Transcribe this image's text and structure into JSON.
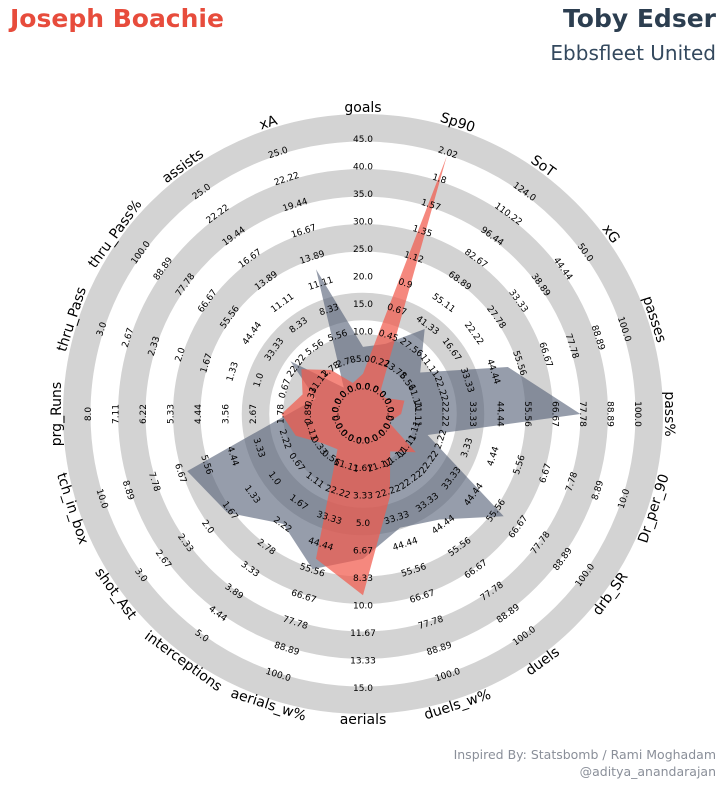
{
  "header": {
    "player1": "Joseph Boachie",
    "player2": "Toby Edser",
    "team2": "Ebbsfleet United"
  },
  "credits": {
    "line1": "Inspired By: Statsbomb / Rami Moghadam",
    "line2": "@aditya_anandarajan"
  },
  "colors": {
    "player1": "#f15a4c",
    "player2": "#566178",
    "ring": "#d3d3d3"
  },
  "chart_data": {
    "type": "radar",
    "params": [
      "goals",
      "Sp90",
      "SoT",
      "xG",
      "passes",
      "pass%",
      "Dr_per_90",
      "drb_SR",
      "duels",
      "duels_w%",
      "aerials",
      "aerials_w%",
      "interceptions",
      "shot_Ast",
      "tch_in_box",
      "prg_Runs",
      "thru_Pass",
      "thru_Pass%",
      "assists",
      "xA"
    ],
    "ranges": [
      [
        0,
        45
      ],
      [
        0,
        2.25
      ],
      [
        0,
        138
      ],
      [
        0,
        55.56
      ],
      [
        0,
        111.11
      ],
      [
        0,
        111.11
      ],
      [
        0,
        11.11
      ],
      [
        0,
        111.11
      ],
      [
        0,
        111.11
      ],
      [
        0,
        111.11
      ],
      [
        0,
        16.67
      ],
      [
        0,
        111.11
      ],
      [
        0,
        5.56
      ],
      [
        0,
        3.33
      ],
      [
        0,
        11.11
      ],
      [
        0,
        8.89
      ],
      [
        0,
        3.33
      ],
      [
        0,
        111.11
      ],
      [
        0,
        27.78
      ],
      [
        0,
        27.78
      ]
    ],
    "tick_labels": [
      [
        "0.0",
        "5.0",
        "10.0",
        "15.0",
        "20.0",
        "25.0",
        "30.0",
        "35.0",
        "40.0",
        "45.0"
      ],
      [
        "0.0",
        "0.22",
        "0.45",
        "0.67",
        "0.9",
        "1.12",
        "1.35",
        "1.57",
        "1.8",
        "2.02"
      ],
      [
        "0.0",
        "13.78",
        "27.56",
        "41.33",
        "55.11",
        "68.89",
        "82.67",
        "96.44",
        "110.22",
        "124.0"
      ],
      [
        "0.0",
        "5.56",
        "11.11",
        "16.67",
        "22.22",
        "27.78",
        "33.33",
        "38.89",
        "44.44",
        "50.0"
      ],
      [
        "0.0",
        "11.11",
        "22.22",
        "33.33",
        "44.44",
        "55.56",
        "66.67",
        "77.78",
        "88.89",
        "100.0"
      ],
      [
        "0.0",
        "11.11",
        "22.22",
        "33.33",
        "44.44",
        "55.56",
        "66.67",
        "77.78",
        "88.89",
        "100.0"
      ],
      [
        "0.0",
        "1.11",
        "2.22",
        "3.33",
        "4.44",
        "5.56",
        "6.67",
        "7.78",
        "8.89",
        "10.0"
      ],
      [
        "0.0",
        "11.11",
        "22.22",
        "33.33",
        "44.44",
        "55.56",
        "66.67",
        "77.78",
        "88.89",
        "100.0"
      ],
      [
        "0.0",
        "11.11",
        "22.22",
        "33.33",
        "44.44",
        "55.56",
        "66.67",
        "77.78",
        "88.89",
        "100.0"
      ],
      [
        "0.0",
        "11.11",
        "22.22",
        "33.33",
        "44.44",
        "55.56",
        "66.67",
        "77.78",
        "88.89",
        "100.0"
      ],
      [
        "0.0",
        "1.67",
        "3.33",
        "5.0",
        "6.67",
        "8.33",
        "10.0",
        "11.67",
        "13.33",
        "15.0"
      ],
      [
        "0.0",
        "11.11",
        "22.22",
        "33.33",
        "44.44",
        "55.56",
        "66.67",
        "77.78",
        "88.89",
        "100.0"
      ],
      [
        "0.0",
        "0.56",
        "1.11",
        "1.67",
        "2.22",
        "2.78",
        "3.33",
        "3.89",
        "4.44",
        "5.0"
      ],
      [
        "0.0",
        "0.33",
        "0.67",
        "1.0",
        "1.33",
        "1.67",
        "2.0",
        "2.33",
        "2.67",
        "3.0"
      ],
      [
        "0.0",
        "1.11",
        "2.22",
        "3.33",
        "4.44",
        "5.56",
        "6.67",
        "7.78",
        "8.89",
        "10.0"
      ],
      [
        "0.0",
        "0.89",
        "1.78",
        "2.67",
        "3.56",
        "4.44",
        "5.33",
        "6.22",
        "7.11",
        "8.0"
      ],
      [
        "0.0",
        "0.33",
        "0.67",
        "1.0",
        "1.33",
        "1.67",
        "2.0",
        "2.33",
        "2.67",
        "3.0"
      ],
      [
        "0.0",
        "11.11",
        "22.22",
        "33.33",
        "44.44",
        "55.56",
        "66.67",
        "77.78",
        "88.89",
        "100.0"
      ],
      [
        "0.0",
        "2.78",
        "5.56",
        "8.33",
        "11.11",
        "13.89",
        "16.67",
        "19.44",
        "22.22",
        "25.0"
      ],
      [
        "0.0",
        "2.78",
        "5.56",
        "8.33",
        "11.11",
        "13.89",
        "16.67",
        "19.44",
        "22.22",
        "25.0"
      ]
    ],
    "series": [
      {
        "name": "Joseph Boachie",
        "values": [
          6,
          2.02,
          14,
          5,
          16,
          14,
          1,
          24,
          17,
          32,
          10,
          56,
          0.8,
          0.55,
          2.6,
          2.4,
          0.7,
          28,
          5,
          3
        ]
      },
      {
        "name": "Toby Edser",
        "values": [
          10,
          0.55,
          48,
          13,
          56,
          80,
          2.5,
          64,
          48,
          44,
          8,
          60,
          2.5,
          1.85,
          6.8,
          2.2,
          0.55,
          33,
          3,
          14
        ]
      }
    ]
  }
}
